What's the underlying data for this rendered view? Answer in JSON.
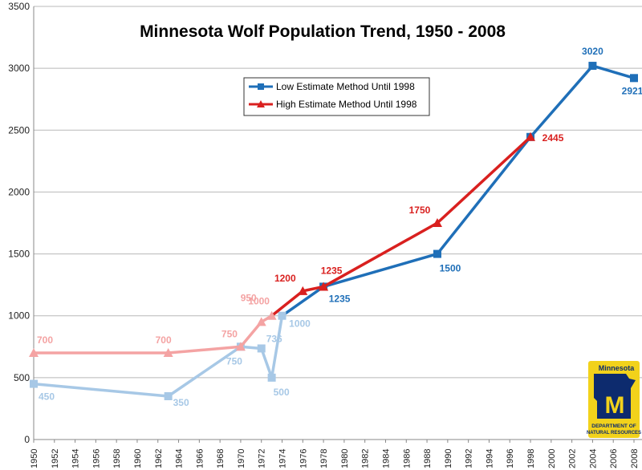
{
  "chart_data": {
    "type": "line",
    "title": "Minnesota Wolf Population Trend, 1950 - 2008",
    "xlabel": "",
    "ylabel": "",
    "xlim": [
      1950,
      2008
    ],
    "ylim": [
      0,
      3500
    ],
    "y_ticks": [
      "0",
      "500",
      "1000",
      "1500",
      "2000",
      "2500",
      "3000",
      "3500"
    ],
    "x_ticks": [
      "1950",
      "1952",
      "1954",
      "1956",
      "1958",
      "1960",
      "1962",
      "1964",
      "1966",
      "1968",
      "1970",
      "1972",
      "1974",
      "1976",
      "1978",
      "1980",
      "1982",
      "1984",
      "1986",
      "1988",
      "1990",
      "1992",
      "1994",
      "1996",
      "1998",
      "2000",
      "2002",
      "2004",
      "2006",
      "2008"
    ],
    "grid": "horizontal",
    "legend_position": "top-center",
    "series": [
      {
        "name": "Low Estimate Method Until 1998",
        "color": "#1f6fb8",
        "faded_color": "#a7c8e6",
        "marker": "square",
        "x": [
          1950,
          1963,
          1970,
          1972,
          1973,
          1974,
          1978,
          1989,
          1998,
          2004,
          2008
        ],
        "values": [
          450,
          350,
          750,
          736,
          500,
          1000,
          1235,
          1500,
          2445,
          3020,
          2921
        ],
        "labels": [
          "450",
          "350",
          "750",
          "736",
          "500",
          "1000",
          "1235",
          "1500",
          "",
          "3020",
          "2921"
        ]
      },
      {
        "name": "High Estimate Method Until 1998",
        "color": "#d9201f",
        "faded_color": "#f4a3a3",
        "marker": "triangle",
        "x": [
          1950,
          1963,
          1970,
          1972,
          1973,
          1976,
          1978,
          1989,
          1998
        ],
        "values": [
          700,
          700,
          750,
          950,
          1000,
          1200,
          1235,
          1750,
          2445
        ],
        "labels": [
          "700",
          "700",
          "750",
          "950",
          "1000",
          "1200",
          "1235",
          "1750",
          "2445"
        ]
      }
    ],
    "annotations": []
  },
  "logo": {
    "state": "Minnesota",
    "line1": "DEPARTMENT OF",
    "line2": "NATURAL RESOURCES",
    "background": "#f2d21b",
    "ink": "#0d2b6e"
  }
}
